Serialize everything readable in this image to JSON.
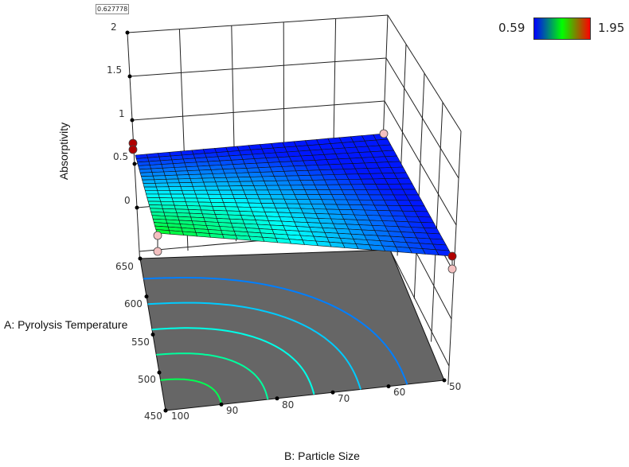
{
  "chart_data": {
    "type": "surface",
    "value_box": "0.627778",
    "x_axis": {
      "label": "B: Particle Size",
      "ticks": [
        100,
        90,
        80,
        70,
        60,
        50
      ],
      "range": [
        50,
        100
      ]
    },
    "y_axis": {
      "label": "A: Pyrolysis Temperature",
      "ticks": [
        450,
        500,
        550,
        600,
        650
      ],
      "range": [
        450,
        650
      ]
    },
    "z_axis": {
      "label": "Absorptivity",
      "ticks": [
        0,
        0.5,
        1,
        1.5,
        2
      ]
    },
    "color_scale": {
      "min": 0.59,
      "max": 1.95,
      "min_label": "0.59",
      "max_label": "1.95",
      "colors": [
        "#0000ff",
        "#00ff00",
        "#ff0000"
      ]
    },
    "contour_floor": true,
    "floor_color": "#666666",
    "design_point_colors": {
      "above": "#b00000",
      "below": "#f4c0c0"
    }
  }
}
